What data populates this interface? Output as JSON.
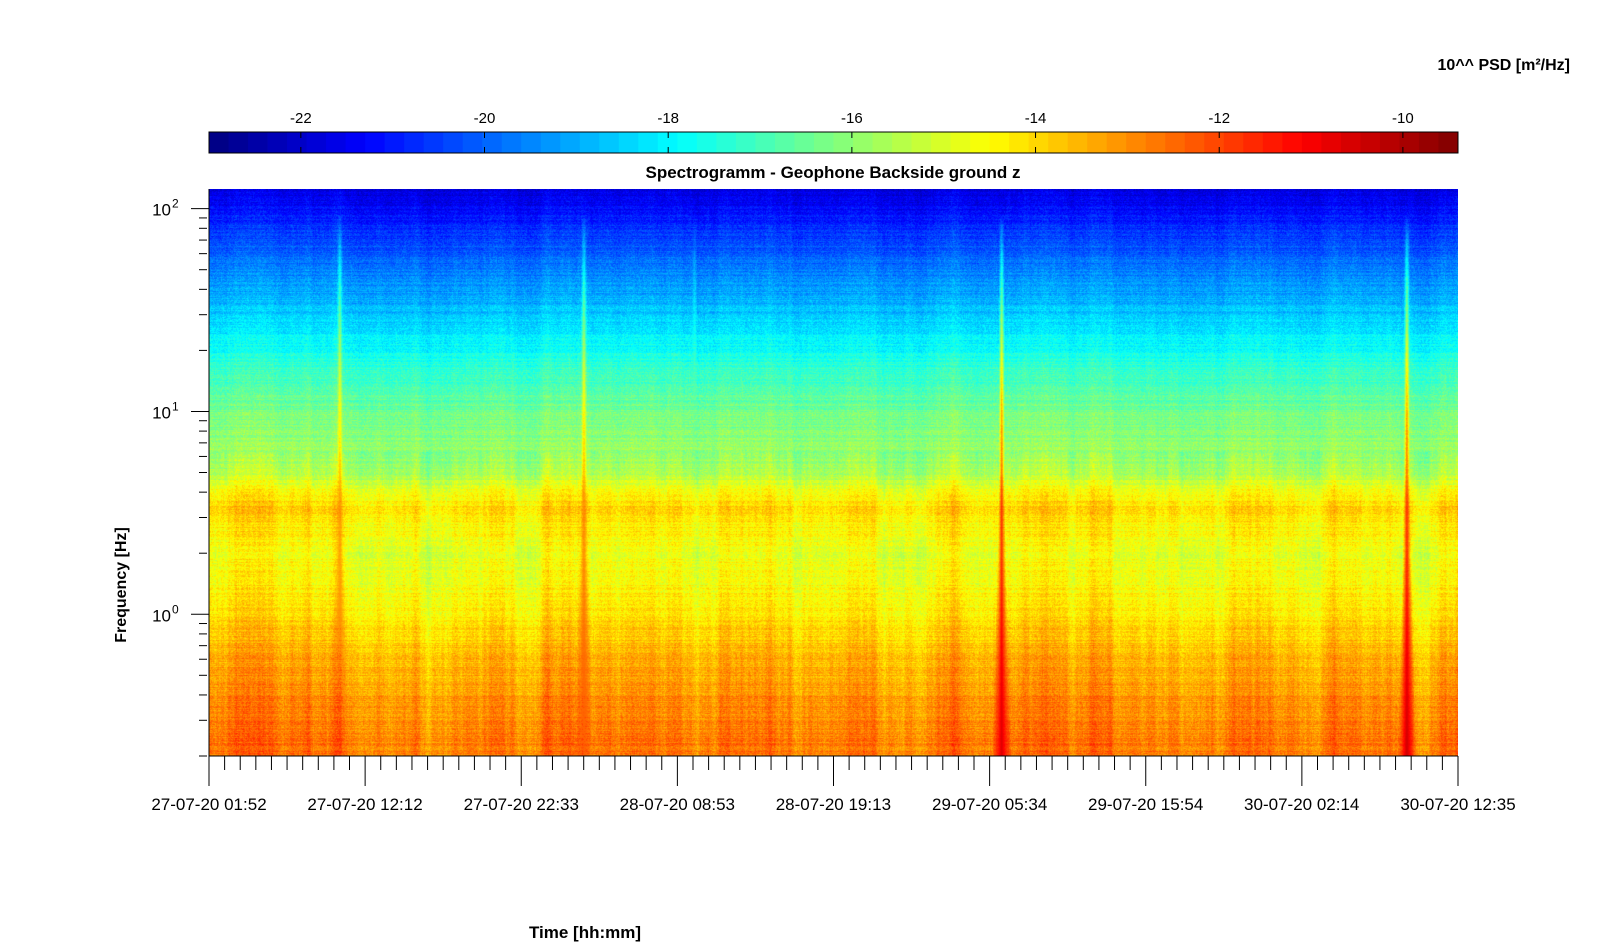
{
  "chart_data": {
    "type": "heatmap",
    "title": "Spectrogramm - Geophone Backside ground z",
    "xlabel": "Time [hh:mm]",
    "ylabel": "Frequency [Hz]",
    "colorbar_label": "10^^ PSD [m²/Hz]",
    "colormap": "jet",
    "color_range": [
      -23,
      -9.4
    ],
    "colorbar_ticks": [
      "-22",
      "-20",
      "-18",
      "-16",
      "-14",
      "-12",
      "-10"
    ],
    "colorbar_tick_values": [
      -22,
      -20,
      -18,
      -16,
      -14,
      -12,
      -10
    ],
    "x_tick_labels": [
      "27-07-20 01:52",
      "27-07-20 12:12",
      "27-07-20 22:33",
      "28-07-20 08:53",
      "28-07-20 19:13",
      "29-07-20 05:34",
      "29-07-20 15:54",
      "30-07-20 02:14",
      "30-07-20 12:35"
    ],
    "xlim": [
      "27-07-20 01:52",
      "30-07-20 12:35"
    ],
    "y_scale": "log",
    "ylim": [
      0.2,
      125
    ],
    "y_tick_labels": [
      {
        "base": "10",
        "exp": "0",
        "value": 1
      },
      {
        "base": "10",
        "exp": "1",
        "value": 10
      },
      {
        "base": "10",
        "exp": "2",
        "value": 100
      }
    ],
    "grid": false,
    "psd_profile_by_frequency": [
      {
        "hz": 0.2,
        "log_psd": -12.6
      },
      {
        "hz": 0.4,
        "log_psd": -13.0
      },
      {
        "hz": 0.7,
        "log_psd": -13.6
      },
      {
        "hz": 1.0,
        "log_psd": -14.2
      },
      {
        "hz": 2.0,
        "log_psd": -14.7
      },
      {
        "hz": 3.5,
        "log_psd": -14.0
      },
      {
        "hz": 5.0,
        "log_psd": -15.6
      },
      {
        "hz": 10.0,
        "log_psd": -16.4
      },
      {
        "hz": 16.0,
        "log_psd": -17.2
      },
      {
        "hz": 30.0,
        "log_psd": -18.6
      },
      {
        "hz": 60.0,
        "log_psd": -20.0
      },
      {
        "hz": 125.0,
        "log_psd": -21.8
      }
    ],
    "transient_events": [
      {
        "time": "27-07-20 10:30",
        "peak_log_psd": -13.0
      },
      {
        "time": "28-07-20 02:40",
        "peak_log_psd": -12.4
      },
      {
        "time": "28-07-20 10:00",
        "peak_log_psd": -16.5
      },
      {
        "time": "29-07-20 06:20",
        "peak_log_psd": -10.6
      },
      {
        "time": "30-07-20 09:10",
        "peak_log_psd": -10.4
      }
    ]
  }
}
